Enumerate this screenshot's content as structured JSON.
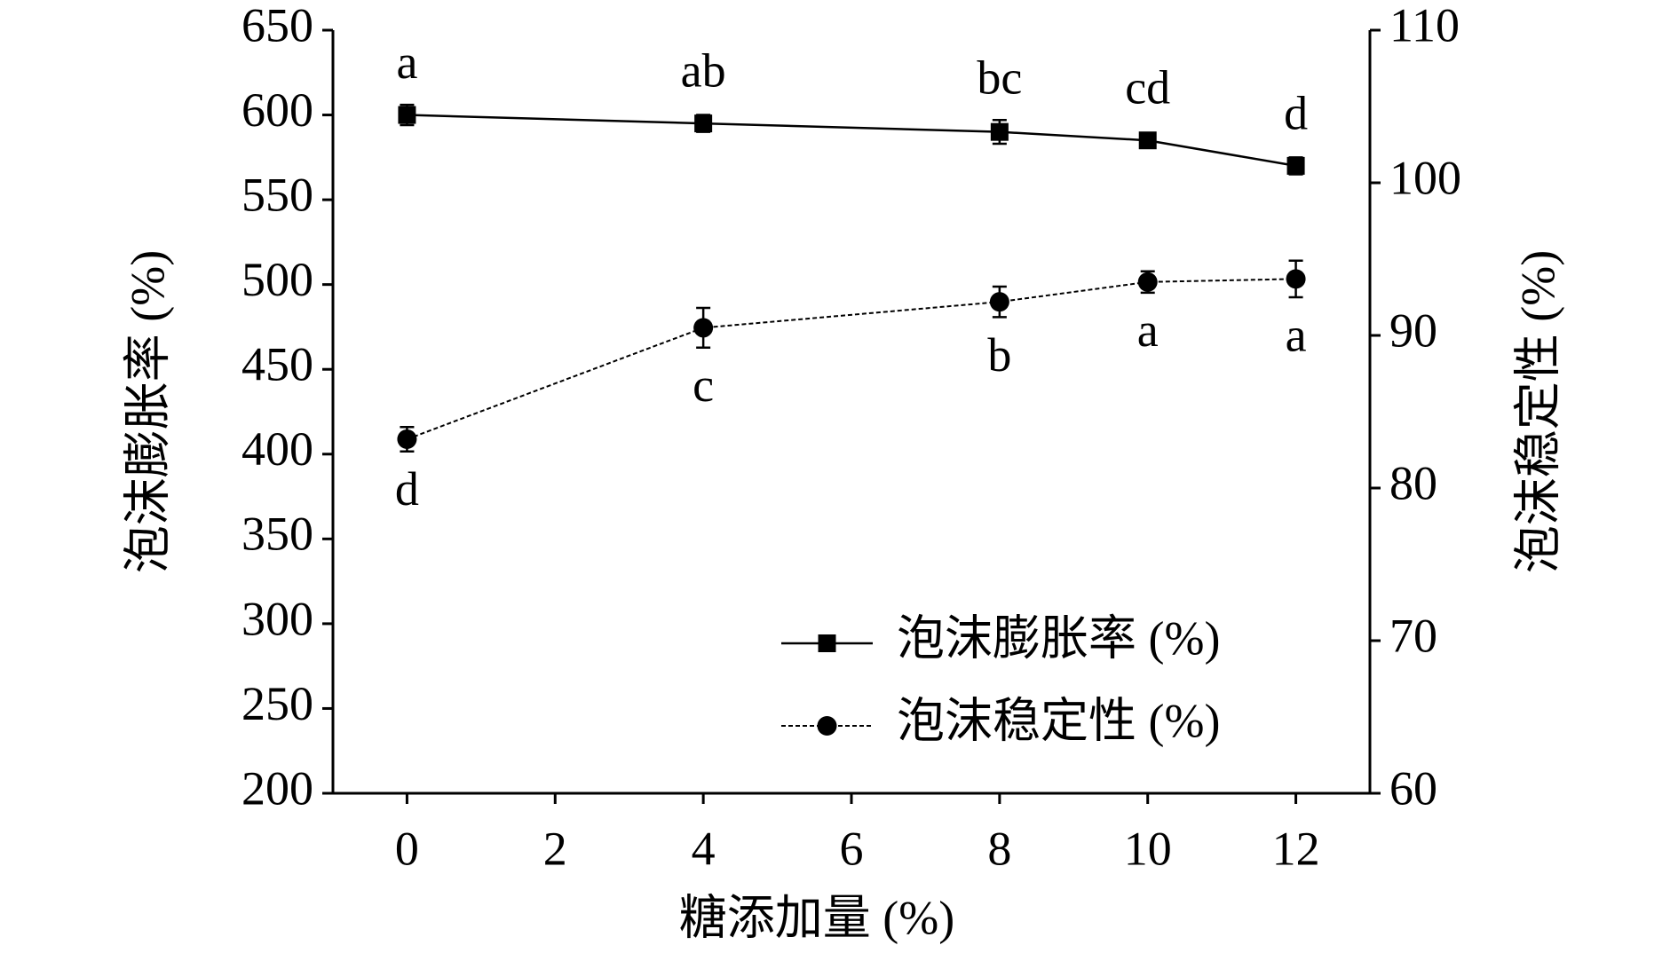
{
  "chart_data": {
    "type": "line",
    "x_label": "糖添加量 (%)",
    "y_label": "泡沫膨胀率 (%)",
    "y2_label": "泡沫稳定性 (%)",
    "x": [
      0,
      4,
      8,
      10,
      12
    ],
    "xlim": [
      -1,
      13
    ],
    "xticks": [
      0,
      2,
      4,
      6,
      8,
      10,
      12
    ],
    "ylim": [
      200,
      650
    ],
    "yticks": [
      200,
      250,
      300,
      350,
      400,
      450,
      500,
      550,
      600,
      650
    ],
    "y2lim": [
      60,
      110
    ],
    "y2ticks": [
      60,
      70,
      80,
      90,
      100,
      110
    ],
    "legend": "lower right",
    "series": [
      {
        "name": "泡沫膨胀率 (%)",
        "color": "#000000",
        "marker": "square",
        "dash": false,
        "values": [
          600,
          595,
          590,
          585,
          570
        ],
        "errors": [
          6,
          5,
          7,
          4,
          5
        ],
        "letters": [
          "a",
          "ab",
          "bc",
          "cd",
          "d"
        ],
        "letters_position": "above"
      },
      {
        "name": "泡沫稳定性 (%)",
        "color": "#000000",
        "marker": "circle",
        "dash": true,
        "axis": "y2",
        "values": [
          83.2,
          90.5,
          92.2,
          93.5,
          93.7
        ],
        "errors": [
          0.8,
          1.3,
          1.0,
          0.7,
          1.2
        ],
        "letters": [
          "d",
          "c",
          "b",
          "a",
          "a"
        ],
        "letters_position": "below"
      }
    ]
  }
}
